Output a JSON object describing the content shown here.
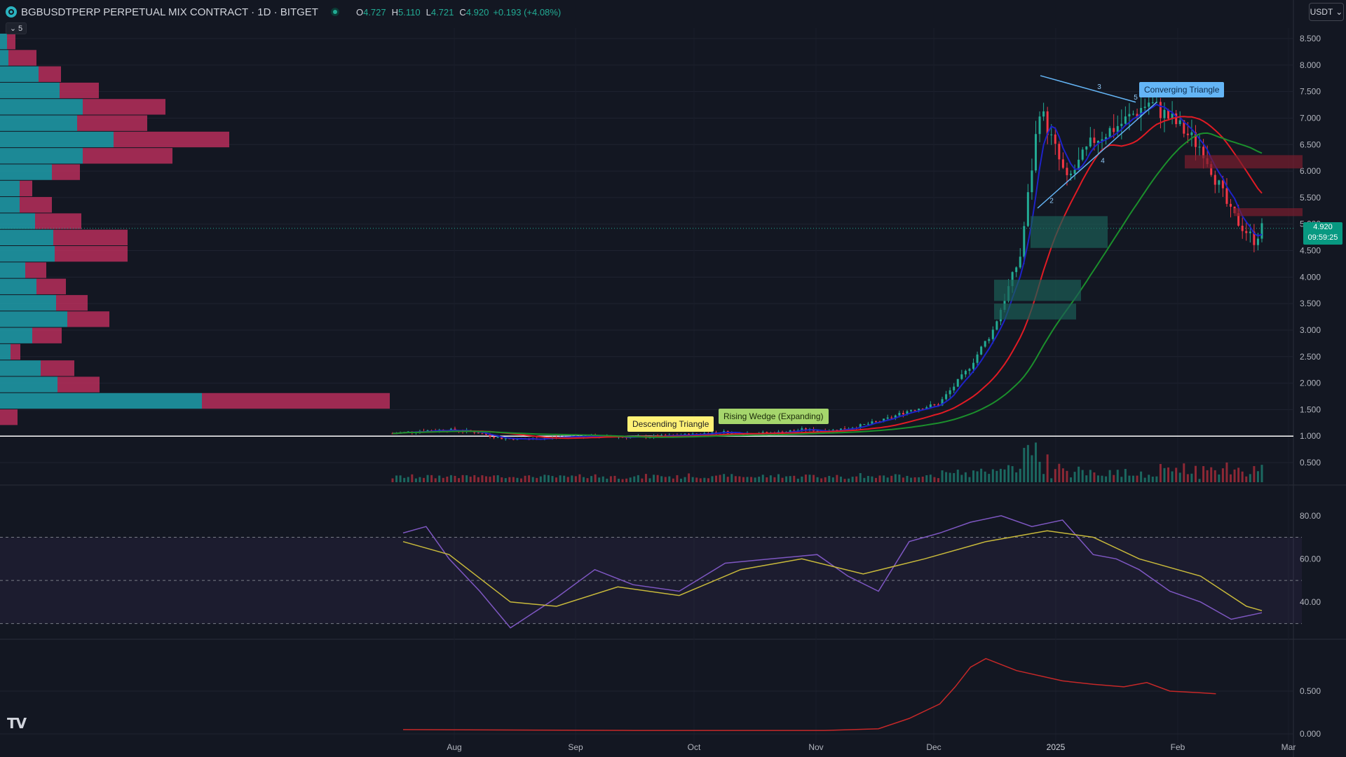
{
  "header": {
    "symbol": "BGBUSDTPERP PERPETUAL MIX CONTRACT · 1D · BITGET",
    "open_label": "O",
    "open": "4.727",
    "high_label": "H",
    "high": "5.110",
    "low_label": "L",
    "low": "4.721",
    "close_label": "C",
    "close": "4.920",
    "change": "+0.193 (+4.08%)",
    "collapse_label": "5",
    "currency": "USDT"
  },
  "price_tag": {
    "price": "4.920",
    "countdown": "09:59:25"
  },
  "colors": {
    "background": "#131722",
    "up": "#22ab94",
    "down": "#f23645",
    "ma_fast": "#1e22c8",
    "ma_mid": "#e01b24",
    "ma_slow": "#1b8f2c",
    "rsi": "#7e57c2",
    "rsi_ma": "#c8b93b",
    "osc": "#c62828"
  },
  "icons": [
    "bitget-logo-icon",
    "chevron-down-icon",
    "status-dot-icon",
    "tradingview-logo-icon"
  ],
  "chart_data": [
    {
      "type": "candlestick",
      "pane": "price",
      "y_axis_ticks": [
        "8.500",
        "8.000",
        "7.500",
        "7.000",
        "6.500",
        "6.000",
        "5.500",
        "5.000",
        "4.500",
        "4.000",
        "3.500",
        "3.000",
        "2.500",
        "2.000",
        "1.500",
        "1.000",
        "0.500"
      ],
      "ylim": [
        0.5,
        8.5
      ],
      "x_axis_ticks": [
        "Aug",
        "Sep",
        "Oct",
        "Nov",
        "Dec",
        "2025",
        "Feb",
        "Mar"
      ],
      "series_close": [
        [
          "2024-07-13",
          1.05
        ],
        [
          "2024-07-20",
          1.1
        ],
        [
          "2024-07-27",
          1.12
        ],
        [
          "2024-08-03",
          1.08
        ],
        [
          "2024-08-10",
          0.96
        ],
        [
          "2024-08-17",
          0.94
        ],
        [
          "2024-08-24",
          0.98
        ],
        [
          "2024-08-31",
          1.0
        ],
        [
          "2024-09-07",
          0.99
        ],
        [
          "2024-09-14",
          0.98
        ],
        [
          "2024-09-21",
          1.0
        ],
        [
          "2024-09-28",
          1.03
        ],
        [
          "2024-10-05",
          1.08
        ],
        [
          "2024-10-12",
          1.05
        ],
        [
          "2024-10-19",
          1.06
        ],
        [
          "2024-10-26",
          1.12
        ],
        [
          "2024-11-02",
          1.1
        ],
        [
          "2024-11-09",
          1.18
        ],
        [
          "2024-11-16",
          1.3
        ],
        [
          "2024-11-23",
          1.5
        ],
        [
          "2024-11-30",
          1.6
        ],
        [
          "2024-12-07",
          2.2
        ],
        [
          "2024-12-14",
          3.0
        ],
        [
          "2024-12-21",
          4.4
        ],
        [
          "2024-12-26",
          7.2
        ],
        [
          "2025-01-02",
          5.8
        ],
        [
          "2025-01-09",
          6.6
        ],
        [
          "2025-01-16",
          6.9
        ],
        [
          "2025-01-23",
          7.3
        ],
        [
          "2025-01-30",
          6.9
        ],
        [
          "2025-02-06",
          6.4
        ],
        [
          "2025-02-13",
          5.2
        ],
        [
          "2025-02-19",
          4.7
        ],
        [
          "2025-02-21",
          4.92
        ]
      ],
      "annotations": [
        "Converging Triangle",
        "Descending Triangle",
        "Rising Wedge (Expanding)"
      ],
      "pattern_points": [
        "1",
        "2",
        "3",
        "4",
        "5"
      ]
    },
    {
      "type": "line",
      "pane": "rsi",
      "y_axis_ticks": [
        "80.00",
        "60.00",
        "40.00"
      ],
      "ylim": [
        25,
        90
      ],
      "bands": [
        70,
        50,
        30
      ],
      "series": [
        {
          "values": [
            [
              0,
              72
            ],
            [
              0.03,
              75
            ],
            [
              0.06,
              60
            ],
            [
              0.1,
              45
            ],
            [
              0.14,
              28
            ],
            [
              0.2,
              42
            ],
            [
              0.25,
              55
            ],
            [
              0.3,
              48
            ],
            [
              0.36,
              45
            ],
            [
              0.42,
              58
            ],
            [
              0.48,
              60
            ],
            [
              0.54,
              62
            ],
            [
              0.58,
              52
            ],
            [
              0.62,
              45
            ],
            [
              0.66,
              68
            ],
            [
              0.7,
              72
            ],
            [
              0.74,
              77
            ],
            [
              0.78,
              80
            ],
            [
              0.82,
              75
            ],
            [
              0.86,
              78
            ],
            [
              0.9,
              62
            ],
            [
              0.93,
              60
            ],
            [
              0.96,
              55
            ],
            [
              1.0,
              45
            ],
            [
              1.04,
              40
            ],
            [
              1.08,
              32
            ],
            [
              1.12,
              35
            ]
          ]
        },
        {
          "values": [
            [
              0,
              68
            ],
            [
              0.06,
              62
            ],
            [
              0.14,
              40
            ],
            [
              0.2,
              38
            ],
            [
              0.28,
              47
            ],
            [
              0.36,
              43
            ],
            [
              0.44,
              55
            ],
            [
              0.52,
              60
            ],
            [
              0.6,
              53
            ],
            [
              0.68,
              60
            ],
            [
              0.76,
              68
            ],
            [
              0.84,
              73
            ],
            [
              0.9,
              70
            ],
            [
              0.96,
              60
            ],
            [
              1.04,
              52
            ],
            [
              1.1,
              38
            ],
            [
              1.12,
              36
            ]
          ]
        }
      ]
    },
    {
      "type": "line",
      "pane": "oscillator",
      "y_axis_ticks": [
        "0.500",
        "0.000"
      ],
      "ylim": [
        0,
        1.0
      ],
      "series": [
        {
          "values": [
            [
              0,
              0.05
            ],
            [
              0.3,
              0.04
            ],
            [
              0.55,
              0.04
            ],
            [
              0.62,
              0.06
            ],
            [
              0.66,
              0.18
            ],
            [
              0.7,
              0.35
            ],
            [
              0.72,
              0.55
            ],
            [
              0.74,
              0.78
            ],
            [
              0.76,
              0.88
            ],
            [
              0.8,
              0.74
            ],
            [
              0.86,
              0.62
            ],
            [
              0.9,
              0.58
            ],
            [
              0.94,
              0.55
            ],
            [
              0.97,
              0.6
            ],
            [
              1.0,
              0.5
            ],
            [
              1.04,
              0.48
            ],
            [
              1.06,
              0.47
            ]
          ]
        }
      ]
    }
  ]
}
